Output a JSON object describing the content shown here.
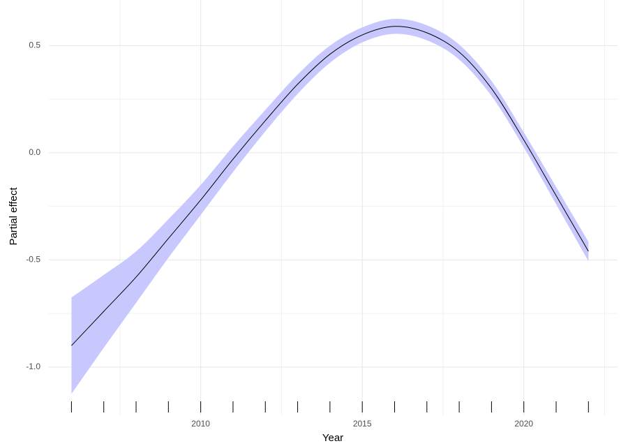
{
  "chart_data": {
    "type": "line",
    "x_label": "Year",
    "y_label": "Partial effect",
    "x": [
      2006,
      2007,
      2008,
      2009,
      2010,
      2011,
      2012,
      2013,
      2014,
      2015,
      2016,
      2017,
      2018,
      2019,
      2020,
      2021,
      2022
    ],
    "series": [
      {
        "color": "#000000",
        "values": [
          -0.9,
          -0.74,
          -0.58,
          -0.4,
          -0.22,
          -0.03,
          0.15,
          0.32,
          0.46,
          0.55,
          0.59,
          0.56,
          0.47,
          0.3,
          0.06,
          -0.2,
          -0.46
        ]
      }
    ],
    "band": {
      "color": "#c8c8ff",
      "lower": [
        -1.125,
        -0.91,
        -0.7,
        -0.49,
        -0.29,
        -0.09,
        0.1,
        0.275,
        0.42,
        0.515,
        0.555,
        0.525,
        0.435,
        0.265,
        0.025,
        -0.24,
        -0.505
      ],
      "upper": [
        -0.675,
        -0.57,
        -0.46,
        -0.31,
        -0.15,
        0.03,
        0.2,
        0.365,
        0.5,
        0.585,
        0.625,
        0.595,
        0.505,
        0.335,
        0.095,
        -0.16,
        -0.415
      ]
    },
    "rug": [
      2006,
      2007,
      2008,
      2009,
      2010,
      2011,
      2012,
      2013,
      2014,
      2015,
      2016,
      2017,
      2018,
      2019,
      2020,
      2021,
      2022
    ],
    "xlim": [
      2005.3,
      2022.9
    ],
    "xticks": [
      2010,
      2015,
      2020
    ],
    "ylim": [
      -1.225,
      0.713
    ],
    "yticks": [
      {
        "value": -1,
        "label": "-1.0"
      },
      -0.5,
      {
        "value": 0,
        "label": "0.0"
      },
      0.5
    ],
    "grid": true
  }
}
